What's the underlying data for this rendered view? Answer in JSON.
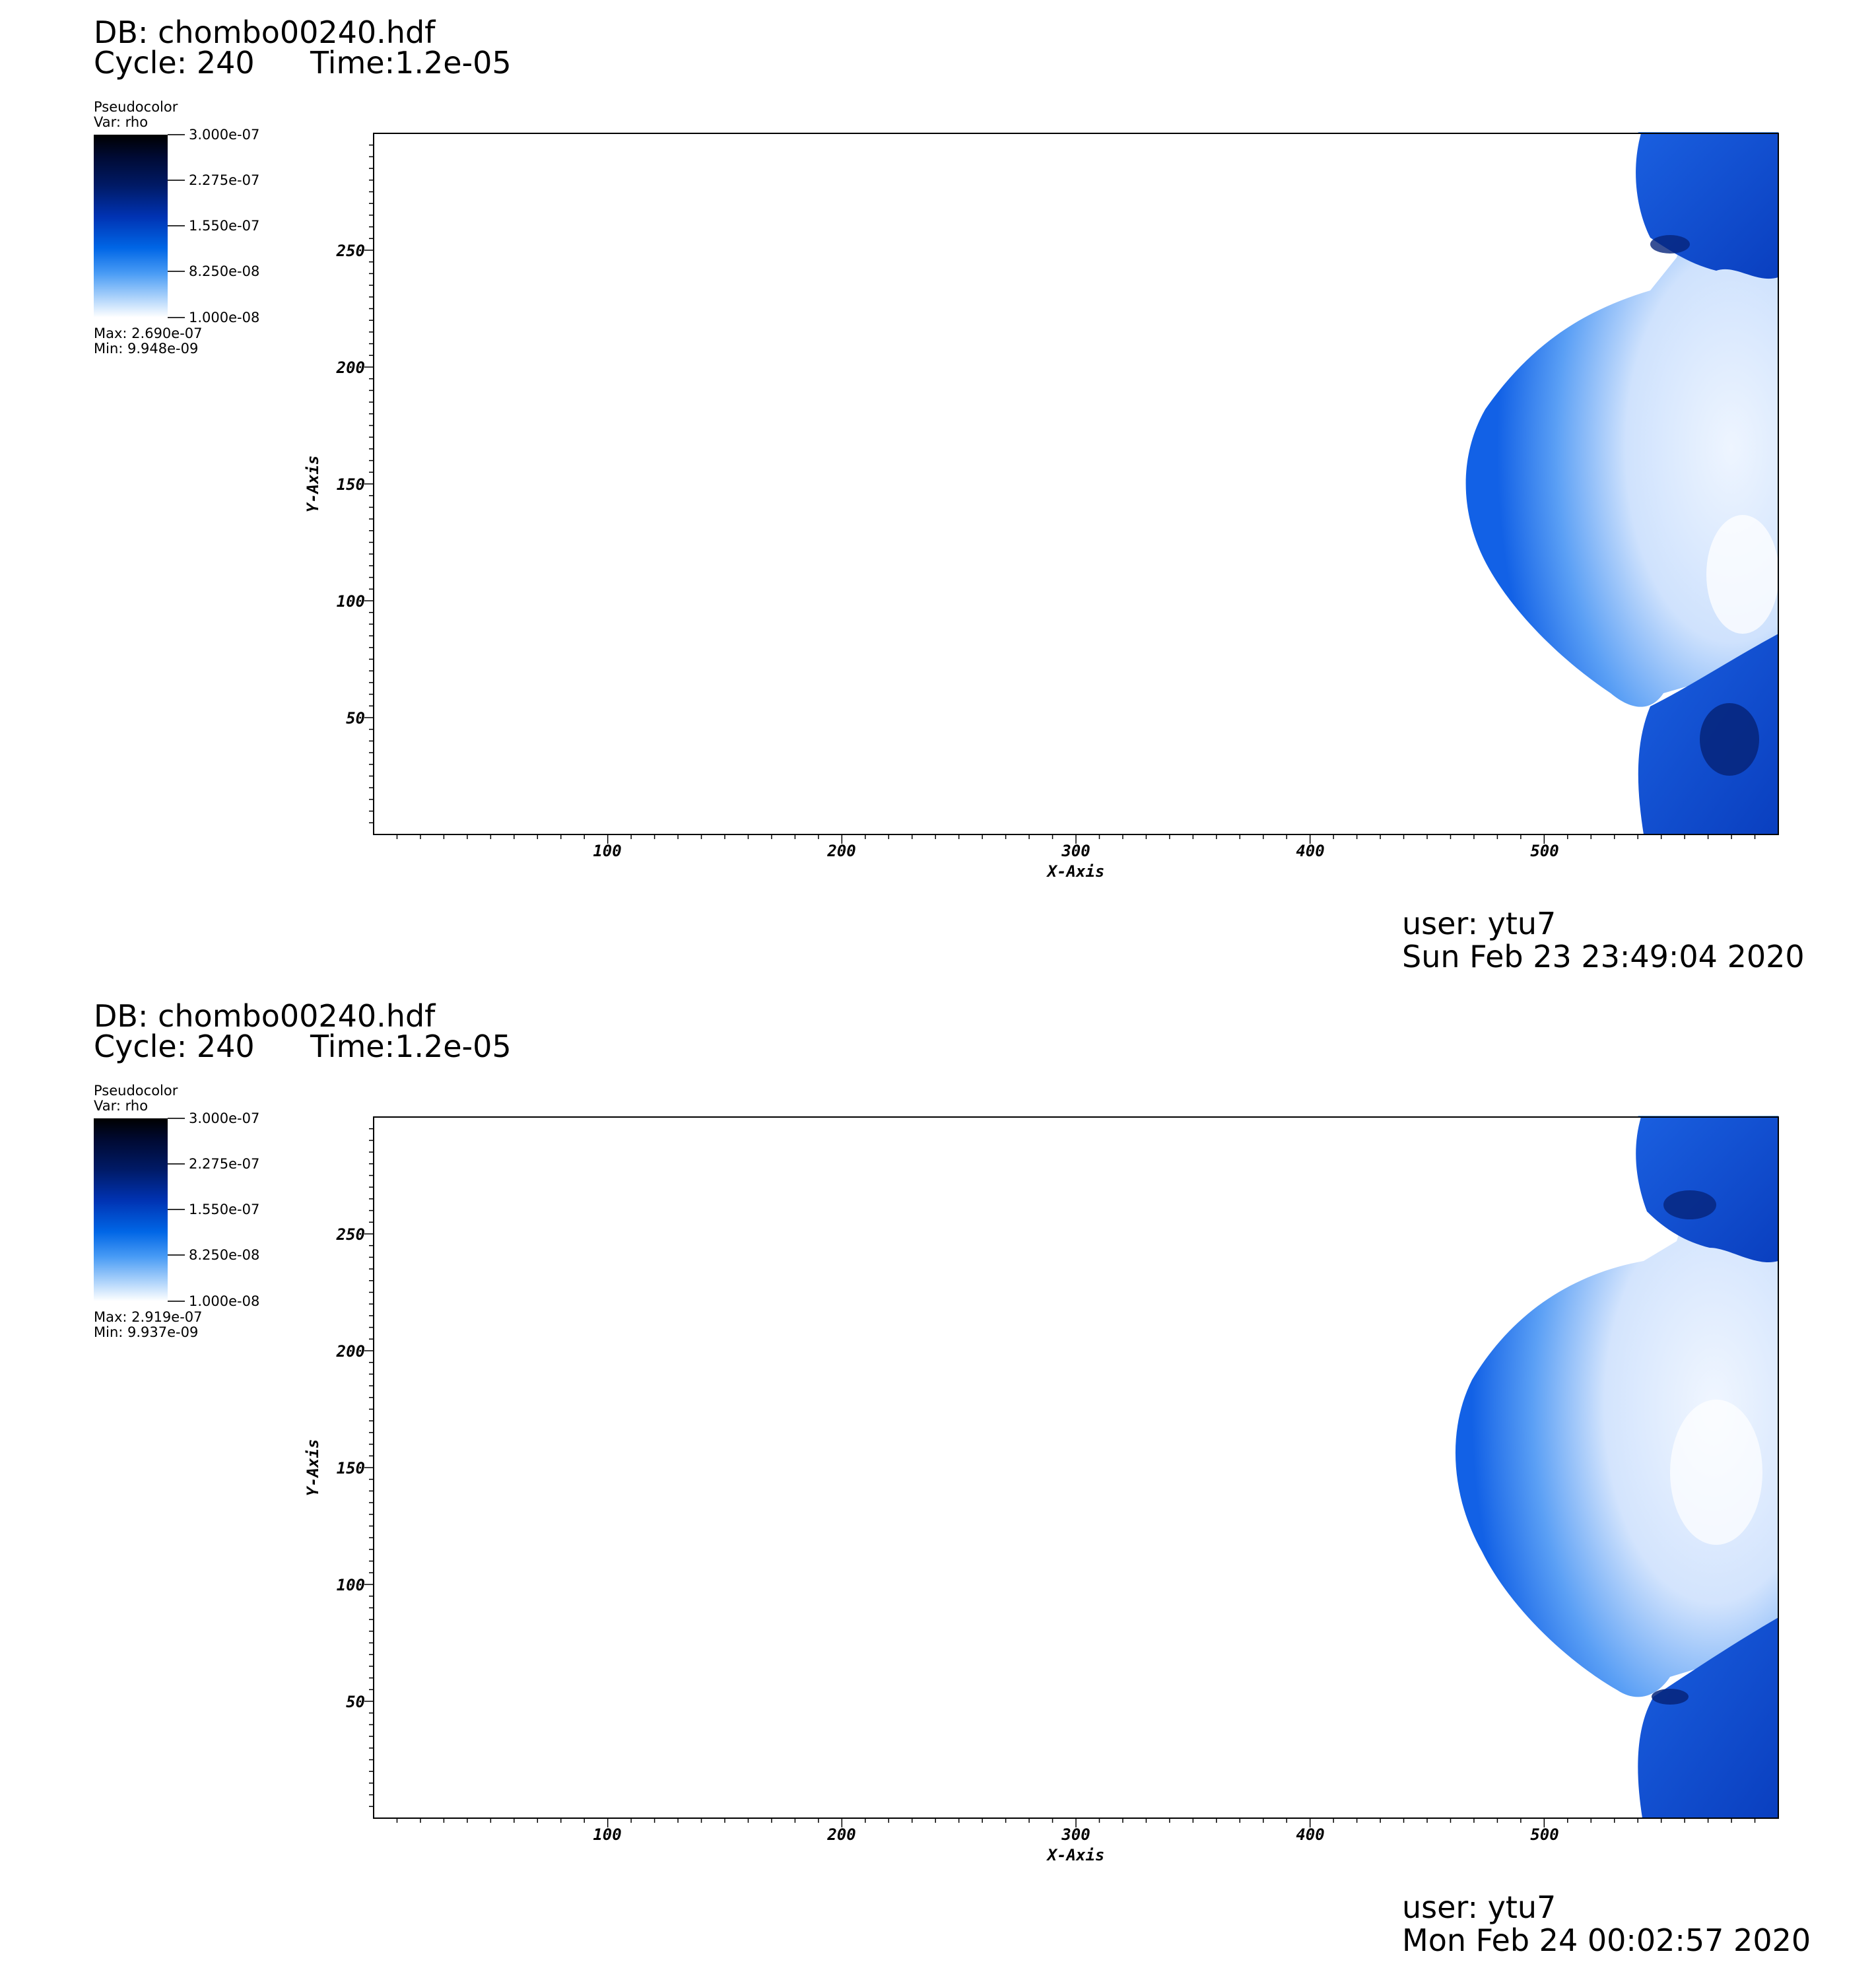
{
  "colors": {
    "background": "#ffffff",
    "frame": "#000000",
    "plume_light": "#dbe9fd",
    "plume_mid": "#3d8cf2",
    "plume_dark": "#0033cc"
  },
  "chart_data": [
    {
      "type": "heatmap",
      "db_label": "DB: chombo00240.hdf",
      "cycle_label": "Cycle: 240",
      "time_label": "Time:1.2e-05",
      "plot_label": "Pseudocolor",
      "var_label": "Var: rho",
      "colorbar_ticks": [
        "3.000e-07",
        "2.275e-07",
        "1.550e-07",
        "8.250e-08",
        "1.000e-08"
      ],
      "colorbar_range": [
        1e-08,
        3e-07
      ],
      "max_label": "Max:  2.690e-07",
      "min_label": "Min:  9.948e-09",
      "xlabel": "X-Axis",
      "ylabel": "Y-Axis",
      "xticks": [
        "100",
        "200",
        "300",
        "400",
        "500"
      ],
      "yticks": [
        "50",
        "100",
        "150",
        "200",
        "250"
      ],
      "xlim": [
        0,
        600
      ],
      "ylim": [
        0,
        300
      ],
      "user_label": "user: ytu7",
      "date_label": "Sun Feb 23 23:49:04 2020"
    },
    {
      "type": "heatmap",
      "db_label": "DB: chombo00240.hdf",
      "cycle_label": "Cycle: 240",
      "time_label": "Time:1.2e-05",
      "plot_label": "Pseudocolor",
      "var_label": "Var: rho",
      "colorbar_ticks": [
        "3.000e-07",
        "2.275e-07",
        "1.550e-07",
        "8.250e-08",
        "1.000e-08"
      ],
      "colorbar_range": [
        1e-08,
        3e-07
      ],
      "max_label": "Max:  2.919e-07",
      "min_label": "Min:  9.937e-09",
      "xlabel": "X-Axis",
      "ylabel": "Y-Axis",
      "xticks": [
        "100",
        "200",
        "300",
        "400",
        "500"
      ],
      "yticks": [
        "50",
        "100",
        "150",
        "200",
        "250"
      ],
      "xlim": [
        0,
        600
      ],
      "ylim": [
        0,
        300
      ],
      "user_label": "user: ytu7",
      "date_label": "Mon Feb 24 00:02:57 2020"
    }
  ]
}
